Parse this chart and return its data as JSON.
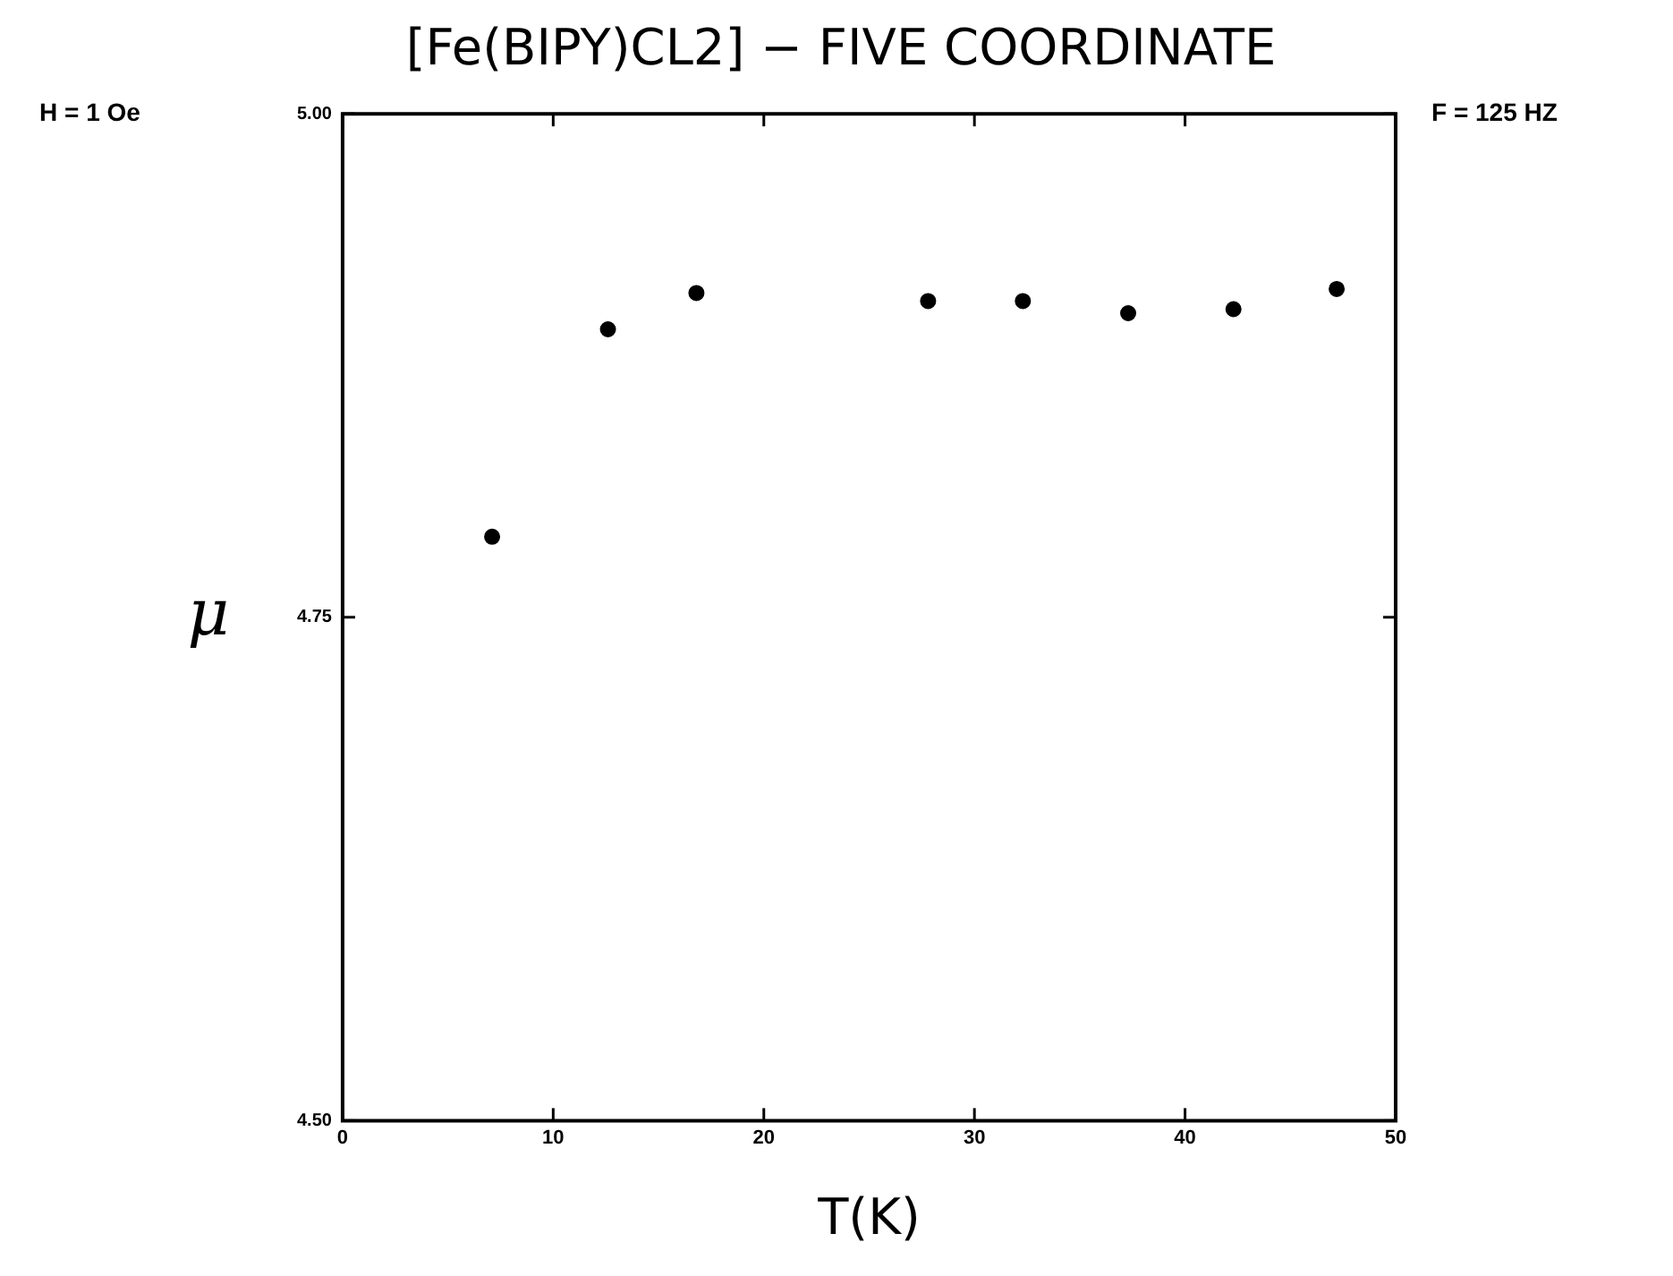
{
  "chart_data": {
    "type": "scatter",
    "title": "[Fe(BIPY)CL2] − FIVE COORDINATE",
    "xlabel": "T(K)",
    "ylabel": "μ",
    "annotations": [
      "H = 1 Oe",
      "F = 125 HZ"
    ],
    "x": [
      7.1,
      12.6,
      16.8,
      27.8,
      32.3,
      37.3,
      42.3,
      47.2
    ],
    "series": [
      {
        "color": "#000000",
        "values": [
          4.79,
          4.893,
          4.911,
          4.907,
          4.907,
          4.901,
          4.903,
          4.913
        ]
      }
    ],
    "xlim": [
      0,
      50
    ],
    "xticks": [
      0,
      10,
      20,
      30,
      40,
      50
    ],
    "ylim": [
      4.5,
      5.0
    ],
    "yticks": [
      {
        "value": 4.5,
        "label": "4.50"
      },
      {
        "value": 4.75,
        "label": "4.75"
      },
      {
        "value": 5.0,
        "label": "5.00"
      }
    ],
    "grid": false,
    "legend": false,
    "marker": "circle"
  }
}
